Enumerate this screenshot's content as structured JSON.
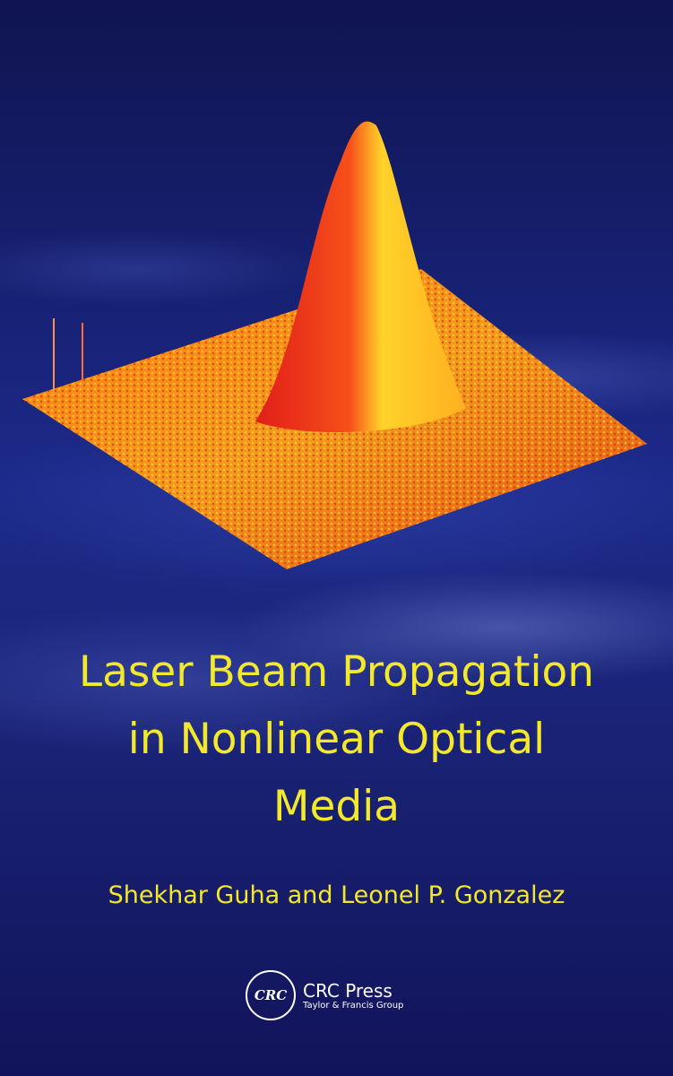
{
  "cover": {
    "title_lines": [
      "Laser Beam Propagation",
      "in Nonlinear Optical",
      "Media"
    ],
    "authors": "Shekhar Guha and Leonel P. Gonzalez",
    "publisher": {
      "logo_text": "CRC",
      "name": "CRC Press",
      "group": "Taylor & Francis Group"
    },
    "colors": {
      "title": "#f3e82b",
      "background": "#15175a",
      "beam_red": "#e8301a",
      "beam_yellow": "#ffe030"
    }
  }
}
